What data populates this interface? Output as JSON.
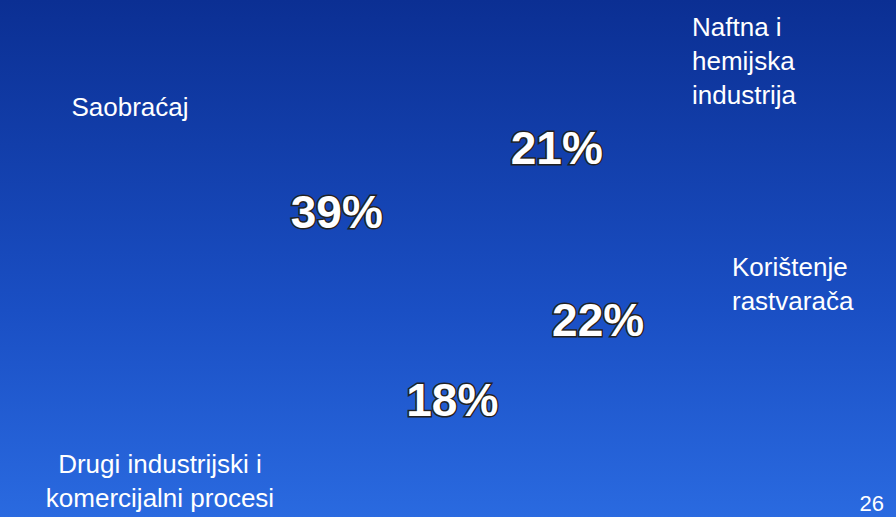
{
  "chart_data": {
    "type": "pie",
    "categories": [
      "Naftna i hemijska industrija",
      "Korištenje rastvarača",
      "Drugi industrijski i komercijalni procesi",
      "Saobraćaj"
    ],
    "values": [
      21,
      22,
      18,
      39
    ],
    "value_labels": [
      "21%",
      "22%",
      "18%",
      "39%"
    ],
    "colors": [
      "#7f93a6",
      "#6a6e70",
      "#b4521c",
      "#6e7b4f"
    ],
    "data_labels": true
  },
  "page_number": "26"
}
